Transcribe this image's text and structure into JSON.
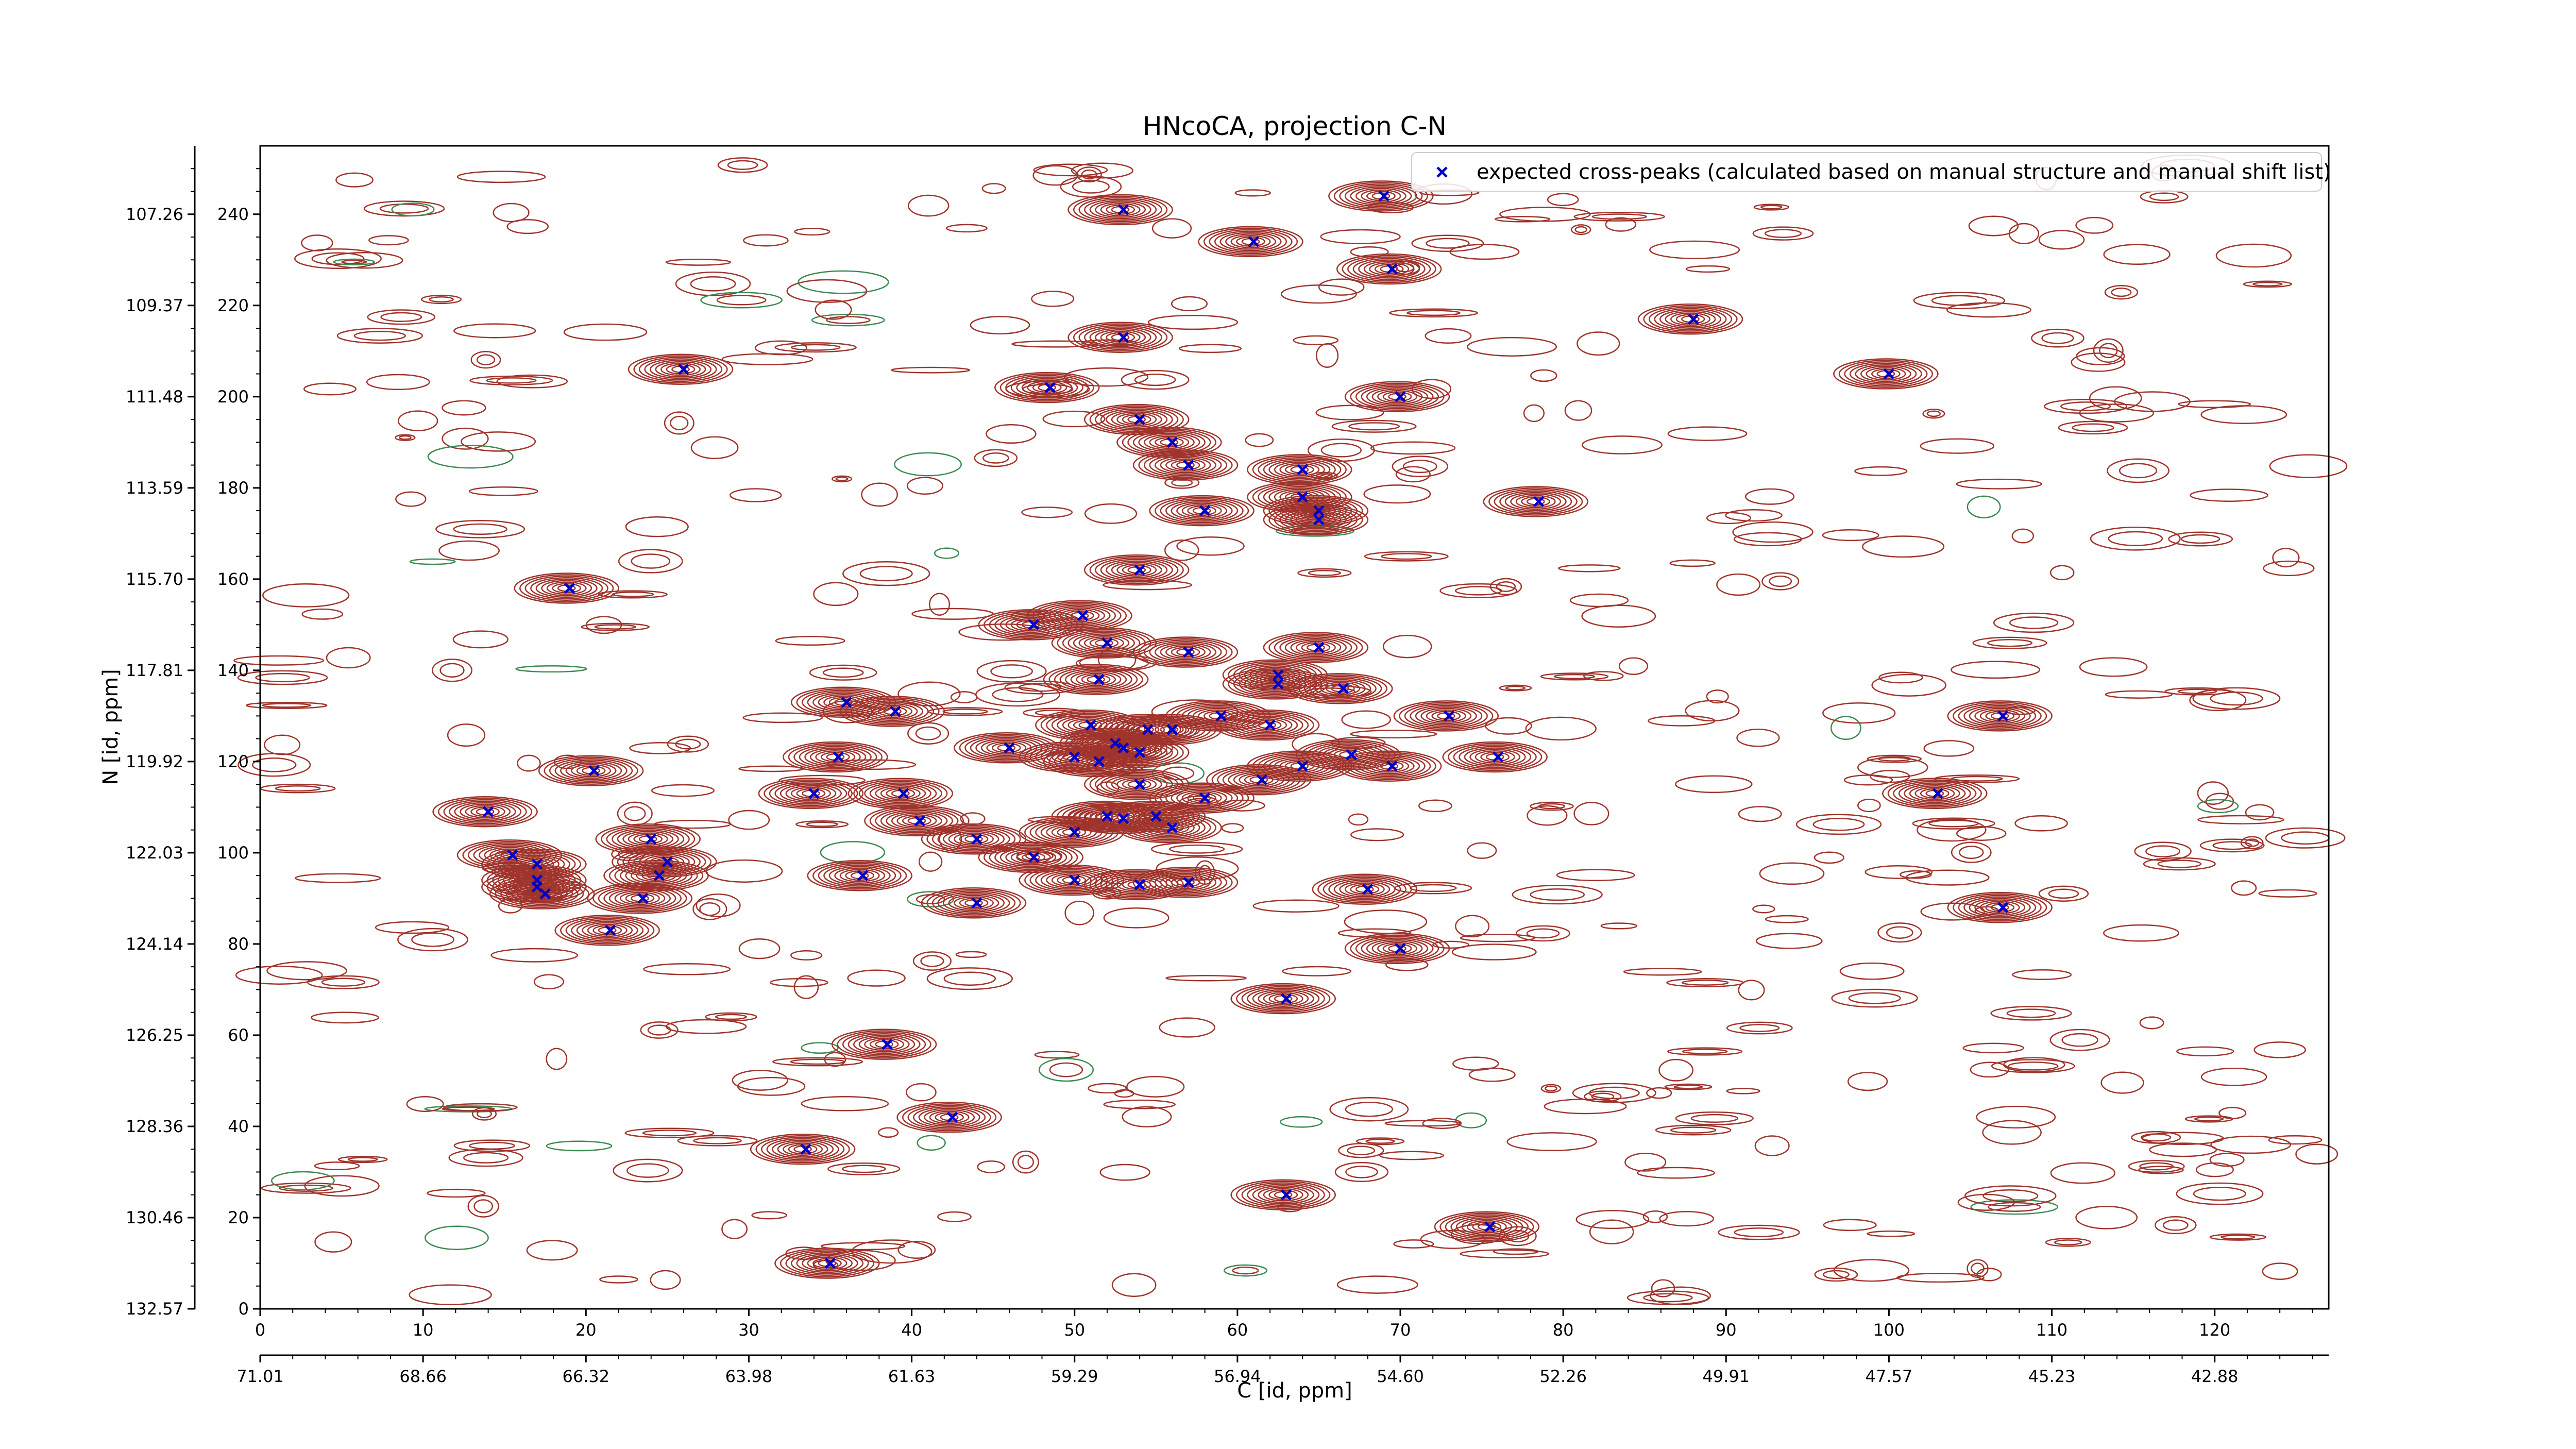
{
  "chart_data": {
    "type": "scatter",
    "title": "HNcoCA, projection C-N",
    "xlabel": "C [id, ppm]",
    "ylabel": "N [id, ppm]",
    "xlim": [
      0,
      127
    ],
    "ylim": [
      0,
      255
    ],
    "x_ticks": [
      0,
      10,
      20,
      30,
      40,
      50,
      60,
      70,
      80,
      90,
      100,
      110,
      120
    ],
    "y_ticks": [
      0,
      20,
      40,
      60,
      80,
      100,
      120,
      140,
      160,
      180,
      200,
      220,
      240
    ],
    "x_ppm_tick_labels": [
      "71.01",
      "68.66",
      "66.32",
      "63.98",
      "61.63",
      "59.29",
      "56.94",
      "54.60",
      "52.26",
      "49.91",
      "47.57",
      "45.23",
      "42.88"
    ],
    "y_ppm_tick_labels": [
      "132.57",
      "130.46",
      "128.36",
      "126.25",
      "124.14",
      "122.03",
      "119.92",
      "117.81",
      "115.70",
      "113.59",
      "111.48",
      "109.37",
      "107.26"
    ],
    "legend": {
      "placement": "top-right",
      "entries": [
        "expected cross-peaks (calculated based on manual structure and manual shift list)"
      ]
    },
    "colors": {
      "contour_positive": "#a0342c",
      "contour_negative": "#3c8a52",
      "marker": "#0000cc"
    },
    "series": [
      {
        "name": "expected cross-peaks (calculated based on manual structure and manual shift list)",
        "marker": "x",
        "points": [
          [
            53,
            241
          ],
          [
            61,
            234
          ],
          [
            69,
            244
          ],
          [
            69.5,
            228
          ],
          [
            88,
            217
          ],
          [
            53,
            213
          ],
          [
            26,
            206
          ],
          [
            48.5,
            202
          ],
          [
            100,
            205
          ],
          [
            70,
            200
          ],
          [
            54,
            195
          ],
          [
            56,
            190
          ],
          [
            57,
            185
          ],
          [
            64,
            184
          ],
          [
            64,
            178
          ],
          [
            65,
            175
          ],
          [
            65,
            173
          ],
          [
            58,
            175
          ],
          [
            78.5,
            177
          ],
          [
            54,
            162
          ],
          [
            19,
            158
          ],
          [
            47.5,
            150
          ],
          [
            50.5,
            152
          ],
          [
            52,
            146
          ],
          [
            57,
            144
          ],
          [
            65,
            145
          ],
          [
            51.5,
            138
          ],
          [
            62.5,
            139
          ],
          [
            62.5,
            137
          ],
          [
            66.5,
            136
          ],
          [
            36,
            133
          ],
          [
            39,
            131
          ],
          [
            73,
            130
          ],
          [
            107,
            130
          ],
          [
            51,
            128
          ],
          [
            54.5,
            127
          ],
          [
            56,
            127
          ],
          [
            59,
            130
          ],
          [
            62,
            128
          ],
          [
            46,
            123
          ],
          [
            52.5,
            124
          ],
          [
            53,
            123
          ],
          [
            54,
            122
          ],
          [
            50,
            121
          ],
          [
            51.5,
            120
          ],
          [
            76,
            121
          ],
          [
            20.5,
            118
          ],
          [
            35.5,
            121
          ],
          [
            64,
            119
          ],
          [
            67,
            121.5
          ],
          [
            69.5,
            119
          ],
          [
            61.5,
            116
          ],
          [
            34,
            113
          ],
          [
            39.5,
            113
          ],
          [
            54,
            115
          ],
          [
            58,
            112
          ],
          [
            52,
            108
          ],
          [
            53,
            107.5
          ],
          [
            55,
            108
          ],
          [
            14,
            109
          ],
          [
            40.5,
            107
          ],
          [
            44,
            103
          ],
          [
            50,
            104.5
          ],
          [
            56,
            105.5
          ],
          [
            24,
            103
          ],
          [
            47.5,
            99
          ],
          [
            15.5,
            99.5
          ],
          [
            17,
            97.5
          ],
          [
            17,
            94
          ],
          [
            17,
            92.5
          ],
          [
            17.5,
            91
          ],
          [
            25,
            98
          ],
          [
            24.5,
            95
          ],
          [
            37,
            95
          ],
          [
            50,
            94
          ],
          [
            54,
            93
          ],
          [
            57,
            93.5
          ],
          [
            68,
            92
          ],
          [
            23.5,
            90
          ],
          [
            44,
            89
          ],
          [
            103,
            113
          ],
          [
            107,
            88
          ],
          [
            21.5,
            83
          ],
          [
            70,
            79
          ],
          [
            63,
            68
          ],
          [
            38.5,
            58
          ],
          [
            42.5,
            42
          ],
          [
            33.5,
            35
          ],
          [
            35,
            10
          ],
          [
            63,
            25
          ],
          [
            75.5,
            18
          ]
        ]
      }
    ]
  }
}
